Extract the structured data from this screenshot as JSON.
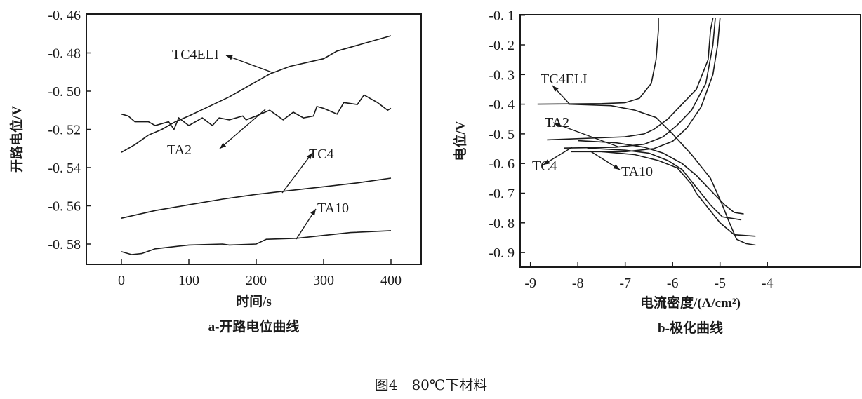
{
  "figure_caption": "图4　80℃下材料",
  "chart_data": [
    {
      "type": "line",
      "subtitle": "a-开路电位曲线",
      "xlabel": "时间/s",
      "ylabel": "开路电位/V",
      "xlim": [
        -50,
        450
      ],
      "ylim": [
        -0.59,
        -0.46
      ],
      "xticks": [
        "0",
        "100",
        "200",
        "300",
        "400"
      ],
      "xtick_values": [
        0,
        100,
        200,
        300,
        400
      ],
      "yticks": [
        "-0. 46",
        "-0. 48",
        "-0. 50",
        "-0. 52",
        "-0. 54",
        "-0. 56",
        "-0. 58"
      ],
      "ytick_values": [
        -0.46,
        -0.48,
        -0.5,
        -0.52,
        -0.54,
        -0.56,
        -0.58
      ],
      "grid": false,
      "series": [
        {
          "name": "TC4ELI",
          "points": [
            [
              0,
              -0.532
            ],
            [
              20,
              -0.528
            ],
            [
              40,
              -0.523
            ],
            [
              60,
              -0.52
            ],
            [
              80,
              -0.516
            ],
            [
              100,
              -0.513
            ],
            [
              130,
              -0.508
            ],
            [
              160,
              -0.503
            ],
            [
              190,
              -0.497
            ],
            [
              220,
              -0.491
            ],
            [
              250,
              -0.487
            ],
            [
              300,
              -0.483
            ],
            [
              320,
              -0.479
            ],
            [
              360,
              -0.475
            ],
            [
              400,
              -0.471
            ]
          ]
        },
        {
          "name": "TA2",
          "points": [
            [
              0,
              -0.512
            ],
            [
              10,
              -0.513
            ],
            [
              20,
              -0.516
            ],
            [
              40,
              -0.516
            ],
            [
              50,
              -0.518
            ],
            [
              60,
              -0.517
            ],
            [
              70,
              -0.516
            ],
            [
              78,
              -0.52
            ],
            [
              85,
              -0.514
            ],
            [
              100,
              -0.518
            ],
            [
              120,
              -0.514
            ],
            [
              135,
              -0.518
            ],
            [
              145,
              -0.514
            ],
            [
              160,
              -0.515
            ],
            [
              180,
              -0.513
            ],
            [
              185,
              -0.515
            ],
            [
              200,
              -0.513
            ],
            [
              220,
              -0.51
            ],
            [
              240,
              -0.515
            ],
            [
              255,
              -0.511
            ],
            [
              270,
              -0.514
            ],
            [
              285,
              -0.513
            ],
            [
              290,
              -0.508
            ],
            [
              300,
              -0.509
            ],
            [
              320,
              -0.512
            ],
            [
              330,
              -0.506
            ],
            [
              350,
              -0.507
            ],
            [
              360,
              -0.502
            ],
            [
              370,
              -0.504
            ],
            [
              380,
              -0.506
            ],
            [
              395,
              -0.51
            ],
            [
              400,
              -0.509
            ]
          ]
        },
        {
          "name": "TC4",
          "points": [
            [
              0,
              -0.5665
            ],
            [
              50,
              -0.5625
            ],
            [
              100,
              -0.5595
            ],
            [
              150,
              -0.5565
            ],
            [
              200,
              -0.554
            ],
            [
              250,
              -0.552
            ],
            [
              300,
              -0.55
            ],
            [
              350,
              -0.548
            ],
            [
              400,
              -0.5455
            ]
          ]
        },
        {
          "name": "TA10",
          "points": [
            [
              0,
              -0.584
            ],
            [
              15,
              -0.5855
            ],
            [
              30,
              -0.585
            ],
            [
              50,
              -0.5825
            ],
            [
              100,
              -0.5805
            ],
            [
              150,
              -0.58
            ],
            [
              160,
              -0.5805
            ],
            [
              200,
              -0.58
            ],
            [
              215,
              -0.5775
            ],
            [
              260,
              -0.577
            ],
            [
              300,
              -0.5755
            ],
            [
              340,
              -0.574
            ],
            [
              400,
              -0.573
            ]
          ]
        }
      ]
    },
    {
      "type": "line",
      "subtitle": "b-极化曲线",
      "xlabel": "电流密度/(A/cm²)",
      "ylabel": "电位/V",
      "xlim": [
        -9.5,
        -3.5
      ],
      "ylim": [
        -0.95,
        -0.1
      ],
      "xticks": [
        "-9",
        "-8",
        "-7",
        "-6",
        "-5",
        "-4"
      ],
      "xtick_values": [
        -9,
        -8,
        -7,
        -6,
        -5,
        -4
      ],
      "yticks": [
        "-0. 1",
        "-0. 2",
        "-0. 3",
        "-0. 4",
        "-0. 5",
        "-0. 6",
        "-0. 7",
        "-0. 8",
        "-0. 9"
      ],
      "ytick_values": [
        -0.1,
        -0.2,
        -0.3,
        -0.4,
        -0.5,
        -0.6,
        -0.7,
        -0.8,
        -0.9
      ],
      "grid": false,
      "series": [
        {
          "name": "TC4ELI",
          "anodic": [
            [
              -8.85,
              -0.4
            ],
            [
              -7.5,
              -0.398
            ],
            [
              -7,
              -0.395
            ],
            [
              -6.7,
              -0.38
            ],
            [
              -6.45,
              -0.33
            ],
            [
              -6.35,
              -0.25
            ],
            [
              -6.3,
              -0.15
            ],
            [
              -6.3,
              -0.11
            ]
          ],
          "cathodic": [
            [
              -8.2,
              -0.4
            ],
            [
              -7.3,
              -0.405
            ],
            [
              -6.8,
              -0.42
            ],
            [
              -6.35,
              -0.445
            ],
            [
              -6,
              -0.5
            ],
            [
              -5.6,
              -0.57
            ],
            [
              -5.2,
              -0.65
            ],
            [
              -4.95,
              -0.74
            ],
            [
              -4.8,
              -0.8
            ],
            [
              -4.65,
              -0.855
            ],
            [
              -4.45,
              -0.87
            ],
            [
              -4.25,
              -0.875
            ]
          ]
        },
        {
          "name": "TA2",
          "anodic": [
            [
              -8.65,
              -0.52
            ],
            [
              -7,
              -0.51
            ],
            [
              -6.6,
              -0.5
            ],
            [
              -6.4,
              -0.485
            ],
            [
              -6.1,
              -0.45
            ],
            [
              -5.8,
              -0.4
            ],
            [
              -5.5,
              -0.35
            ],
            [
              -5.25,
              -0.25
            ],
            [
              -5.2,
              -0.15
            ],
            [
              -5.15,
              -0.11
            ]
          ],
          "cathodic": [
            [
              -8,
              -0.523
            ],
            [
              -7.2,
              -0.53
            ],
            [
              -6.6,
              -0.545
            ],
            [
              -6.2,
              -0.565
            ],
            [
              -5.8,
              -0.6
            ],
            [
              -5.5,
              -0.64
            ],
            [
              -5.2,
              -0.69
            ],
            [
              -4.9,
              -0.74
            ],
            [
              -4.7,
              -0.765
            ],
            [
              -4.5,
              -0.77
            ]
          ]
        },
        {
          "name": "TC4",
          "anodic": [
            [
              -8.3,
              -0.548
            ],
            [
              -7.2,
              -0.545
            ],
            [
              -6.6,
              -0.535
            ],
            [
              -6.2,
              -0.51
            ],
            [
              -5.9,
              -0.47
            ],
            [
              -5.6,
              -0.42
            ],
            [
              -5.3,
              -0.33
            ],
            [
              -5.15,
              -0.2
            ],
            [
              -5.1,
              -0.11
            ]
          ],
          "cathodic": [
            [
              -7.8,
              -0.548
            ],
            [
              -7,
              -0.555
            ],
            [
              -6.5,
              -0.565
            ],
            [
              -6.1,
              -0.59
            ],
            [
              -5.8,
              -0.62
            ],
            [
              -5.6,
              -0.66
            ],
            [
              -5.4,
              -0.7
            ],
            [
              -5.2,
              -0.74
            ],
            [
              -4.95,
              -0.78
            ],
            [
              -4.55,
              -0.79
            ]
          ]
        },
        {
          "name": "TA10",
          "anodic": [
            [
              -8.15,
              -0.56
            ],
            [
              -7,
              -0.56
            ],
            [
              -6.4,
              -0.55
            ],
            [
              -6.0,
              -0.525
            ],
            [
              -5.7,
              -0.48
            ],
            [
              -5.4,
              -0.41
            ],
            [
              -5.15,
              -0.3
            ],
            [
              -5.05,
              -0.2
            ],
            [
              -5.0,
              -0.11
            ]
          ],
          "cathodic": [
            [
              -7.5,
              -0.56
            ],
            [
              -6.8,
              -0.57
            ],
            [
              -6.3,
              -0.59
            ],
            [
              -5.9,
              -0.615
            ],
            [
              -5.6,
              -0.67
            ],
            [
              -5.5,
              -0.7
            ],
            [
              -5.25,
              -0.75
            ],
            [
              -5.0,
              -0.8
            ],
            [
              -4.7,
              -0.84
            ],
            [
              -4.25,
              -0.845
            ]
          ]
        }
      ]
    }
  ]
}
